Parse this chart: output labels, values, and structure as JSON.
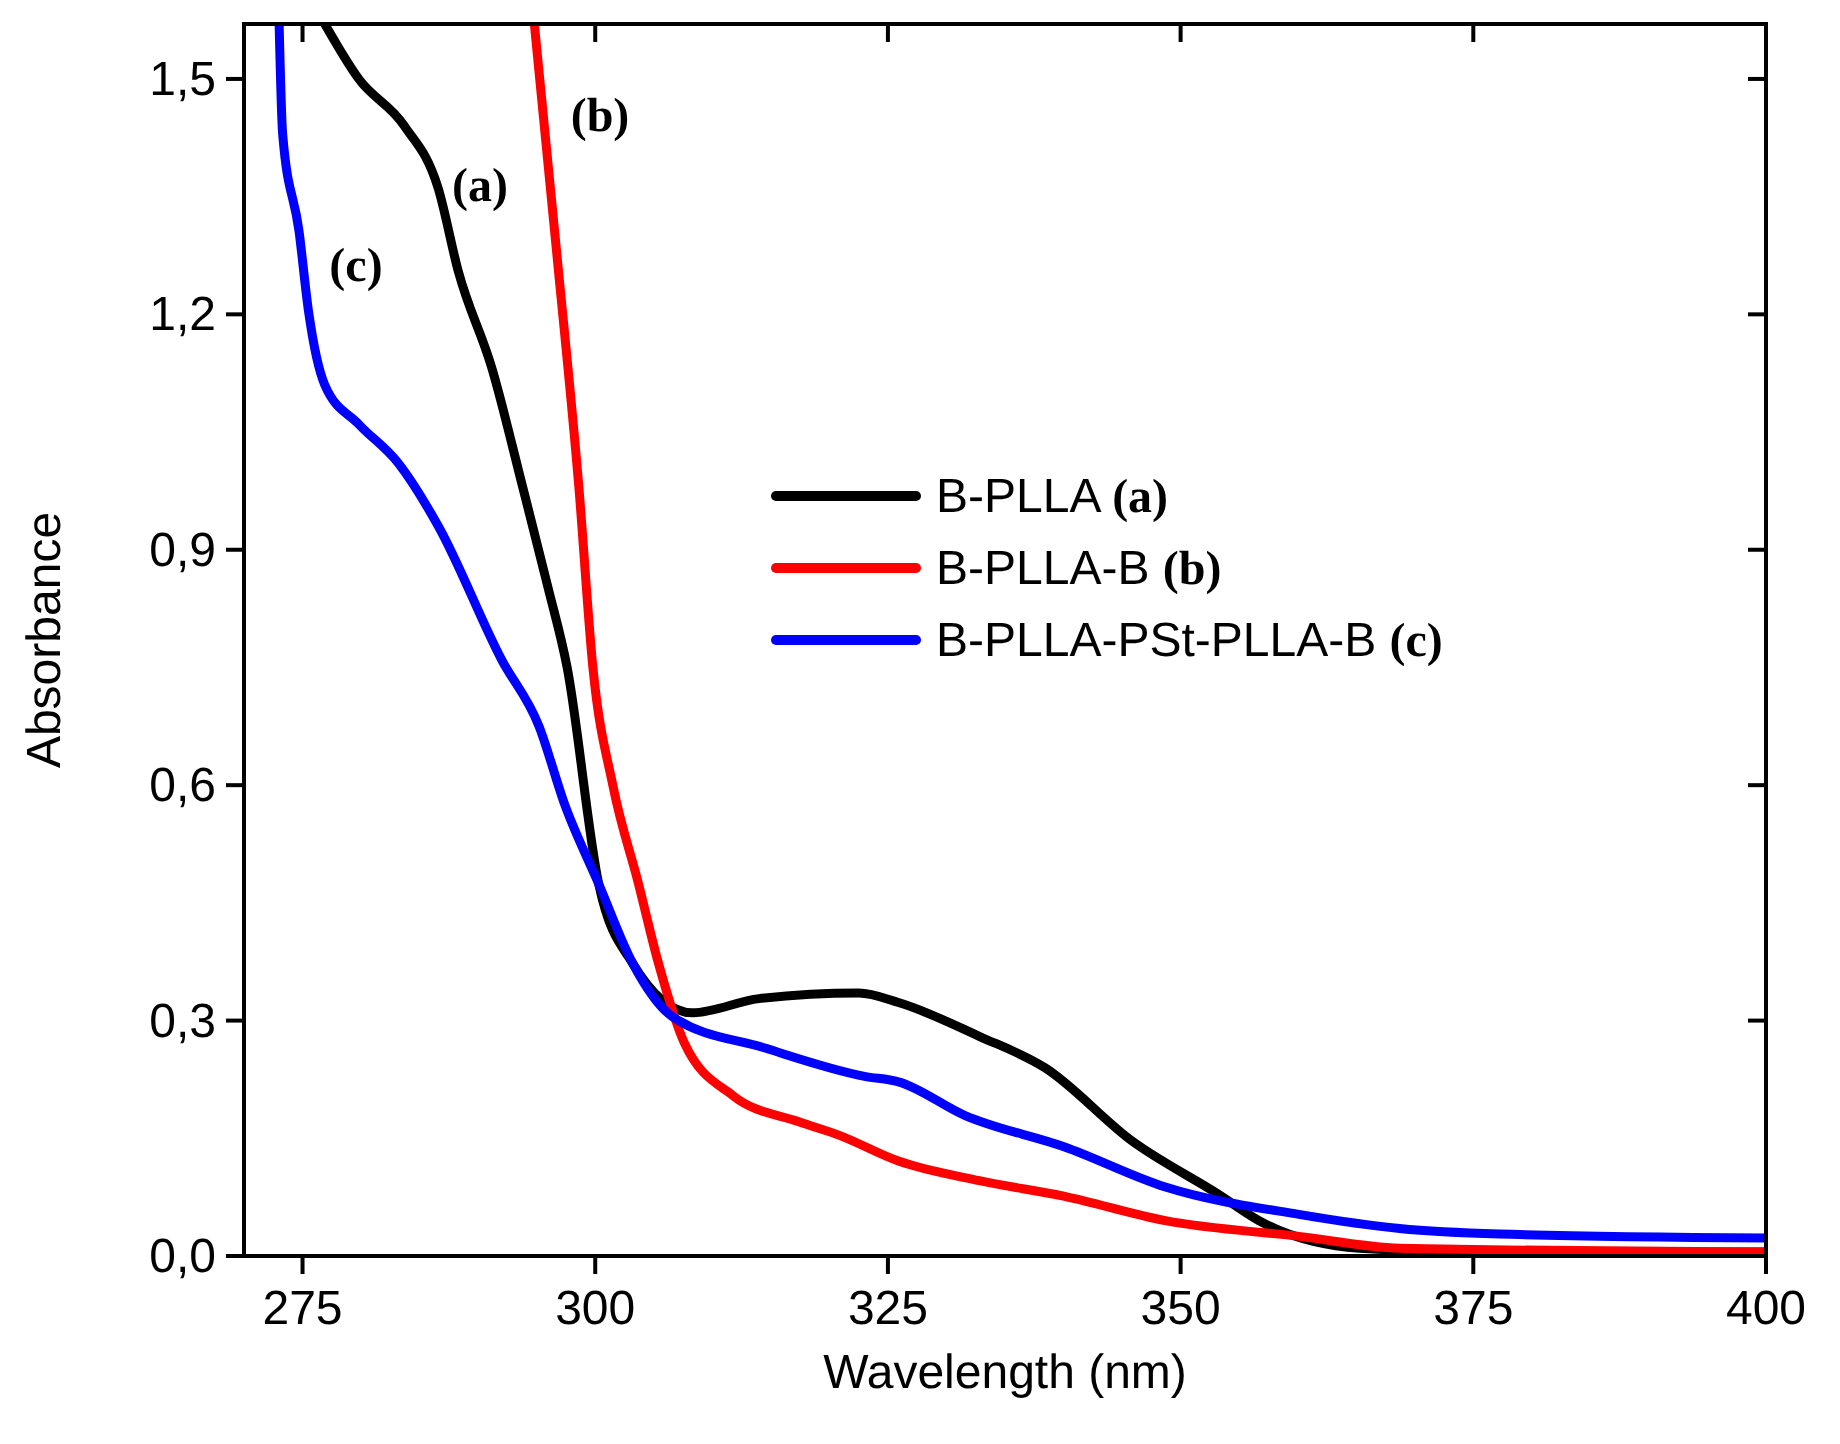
{
  "chart_data": {
    "type": "line",
    "xlabel": "Wavelength (nm)",
    "ylabel": "Absorbance",
    "xlim": [
      270,
      400
    ],
    "ylim": [
      0,
      1.57
    ],
    "xticks": [
      275,
      300,
      325,
      350,
      375,
      400
    ],
    "yticks": [
      {
        "value": 0,
        "label": "0,0"
      },
      {
        "value": 0.3,
        "label": "0,3"
      },
      {
        "value": 0.6,
        "label": "0,6"
      },
      {
        "value": 0.9,
        "label": "0,9"
      },
      {
        "value": 1.2,
        "label": "1,2"
      },
      {
        "value": 1.5,
        "label": "1,5"
      }
    ],
    "legend": "right",
    "grid": false,
    "line_style": "solid",
    "marker": "none",
    "series": [
      {
        "name": "B-PLLA (a)",
        "color": "#000000",
        "x": [
          276.9,
          279.8,
          283.7,
          286.6,
          288.3,
          291.2,
          293.8,
          296.0,
          297.6,
          300.3,
          303.2,
          308.3,
          314,
          322.5,
          325.9,
          332.8,
          338.4,
          345.9,
          353.3,
          356.7,
          365.3,
          375.5,
          400
        ],
        "values": [
          1.57,
          1.5,
          1.44,
          1.36,
          1.255,
          1.13,
          0.98,
          0.85,
          0.75,
          0.474,
          0.373,
          0.31,
          0.328,
          0.335,
          0.323,
          0.28,
          0.24,
          0.146,
          0.078,
          0.045,
          0.01,
          0.005,
          0.005
        ]
      },
      {
        "name": "B-PLLA-B (b)",
        "color": "#ff0000",
        "x": [
          294.8,
          296.7,
          298.6,
          299.8,
          301.5,
          303.7,
          305.4,
          307.6,
          311.8,
          317.4,
          320.8,
          325.9,
          332.8,
          340.1,
          348.7,
          360.1,
          368.7,
          400
        ],
        "values": [
          1.57,
          1.28,
          0.98,
          0.75,
          0.6,
          0.474,
          0.373,
          0.272,
          0.204,
          0.171,
          0.154,
          0.121,
          0.096,
          0.076,
          0.045,
          0.025,
          0.01,
          0.005
        ]
      },
      {
        "name": "B-PLLA-PSt-PLLA-B (c)",
        "color": "#0000ff",
        "x": [
          273.0,
          273.3,
          274.7,
          275.5,
          276.9,
          279.8,
          283.2,
          286.6,
          292.0,
          295.2,
          297.4,
          300.3,
          303.2,
          306.6,
          314.5,
          323.0,
          325.9,
          331.6,
          340.1,
          348.7,
          360.1,
          368.7,
          377.2,
          400
        ],
        "values": [
          1.57,
          1.43,
          1.306,
          1.205,
          1.11,
          1.06,
          1.01,
          0.93,
          0.76,
          0.675,
          0.575,
          0.474,
          0.373,
          0.305,
          0.265,
          0.229,
          0.222,
          0.179,
          0.139,
          0.088,
          0.053,
          0.035,
          0.028,
          0.023
        ]
      }
    ],
    "annotations": [
      "(a)",
      "(b)",
      "(c)"
    ]
  }
}
